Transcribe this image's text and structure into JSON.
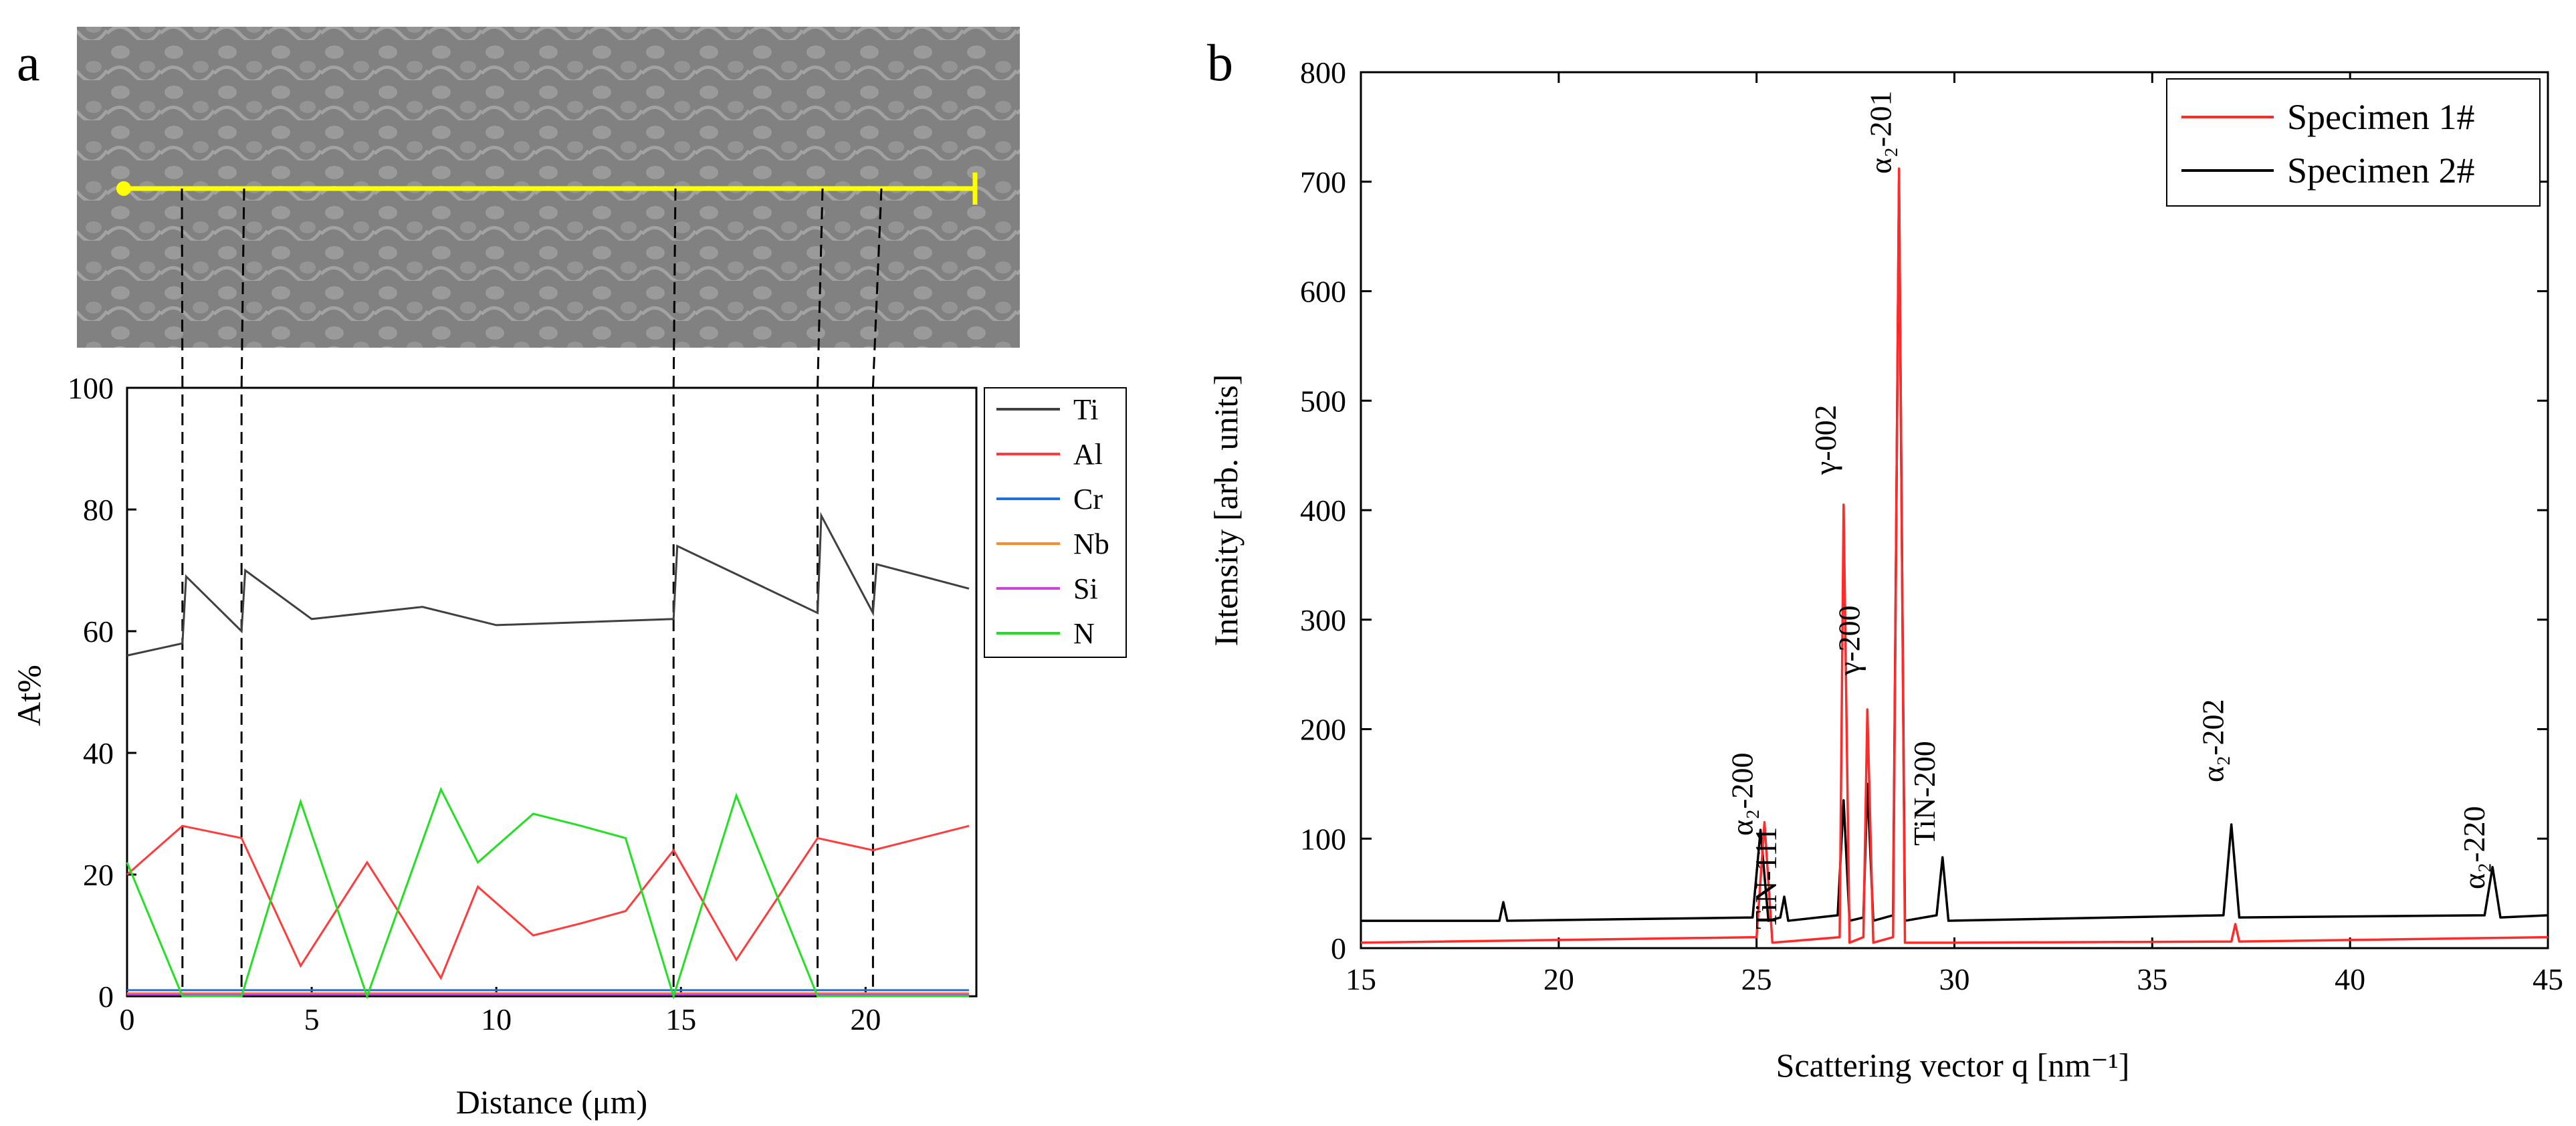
{
  "panel_a": {
    "label": "a",
    "ylabel": "At%",
    "xlabel": "Distance (μm)",
    "xticks": [
      "0",
      "5",
      "10",
      "15",
      "20"
    ],
    "yticks": [
      "0",
      "20",
      "40",
      "60",
      "80",
      "100"
    ],
    "legend": [
      {
        "name": "Ti",
        "color": "#404040"
      },
      {
        "name": "Al",
        "color": "#ff3b3b"
      },
      {
        "name": "Cr",
        "color": "#1f6fd6"
      },
      {
        "name": "Nb",
        "color": "#ff8c2a"
      },
      {
        "name": "Si",
        "color": "#cc44dd"
      },
      {
        "name": "N",
        "color": "#22e022"
      }
    ],
    "image_description_markers": [
      1.5,
      3.1,
      14.8,
      18.7,
      20.2
    ]
  },
  "panel_b": {
    "label": "b",
    "ylabel": "Intensity [arb. units]",
    "xlabel": "Scattering vector q [nm⁻¹]",
    "xticks": [
      "15",
      "20",
      "25",
      "30",
      "35",
      "40",
      "45"
    ],
    "yticks": [
      "0",
      "100",
      "200",
      "300",
      "400",
      "500",
      "600",
      "700",
      "800"
    ],
    "legend": [
      {
        "name": "Specimen 1#",
        "color": "#ff2a2a"
      },
      {
        "name": "Specimen 2#",
        "color": "#000000"
      }
    ],
    "peaks": [
      {
        "text": "α₂-200",
        "q": 25.1
      },
      {
        "text": "TiN-111",
        "q": 25.7
      },
      {
        "text": "γ-002",
        "q": 27.2
      },
      {
        "text": "γ-200",
        "q": 27.8
      },
      {
        "text": "α₂-201",
        "q": 28.6
      },
      {
        "text": "TiN-200",
        "q": 29.7
      },
      {
        "text": "α₂-202",
        "q": 37.0
      },
      {
        "text": "α₂-220",
        "q": 43.6
      }
    ]
  },
  "chart_data": [
    {
      "type": "line",
      "title": "",
      "xlabel": "Distance (μm)",
      "ylabel": "At%",
      "xlim": [
        0,
        23
      ],
      "ylim": [
        0,
        100
      ],
      "series": [
        {
          "name": "Ti",
          "x": [
            0,
            1.5,
            1.6,
            3.1,
            3.2,
            5,
            8,
            10,
            14.8,
            14.9,
            18.7,
            18.8,
            20.2,
            20.3,
            22.8
          ],
          "values": [
            56,
            58,
            69,
            60,
            70,
            62,
            64,
            61,
            62,
            74,
            63,
            79,
            63,
            71,
            67
          ]
        },
        {
          "name": "Al",
          "x": [
            0,
            1.5,
            3.1,
            4.7,
            6.5,
            8.5,
            9.5,
            11,
            12.3,
            13.5,
            14.8,
            16.5,
            18.7,
            20.2,
            22.8
          ],
          "values": [
            20,
            28,
            26,
            5,
            22,
            3,
            18,
            10,
            12,
            14,
            24,
            6,
            26,
            24,
            28
          ]
        },
        {
          "name": "Cr",
          "x": [
            0,
            22.8
          ],
          "values": [
            1,
            1
          ]
        },
        {
          "name": "Nb",
          "x": [
            0,
            22.8
          ],
          "values": [
            0.5,
            0.5
          ]
        },
        {
          "name": "Si",
          "x": [
            0,
            22.8
          ],
          "values": [
            0.3,
            0.3
          ]
        },
        {
          "name": "N",
          "x": [
            0,
            1.5,
            3.1,
            4.7,
            6.5,
            8.5,
            9.5,
            11,
            12.3,
            13.5,
            14.8,
            16.5,
            18.7,
            20.2,
            22.8
          ],
          "values": [
            22,
            0,
            0,
            32,
            0,
            34,
            22,
            30,
            28,
            26,
            0,
            33,
            0,
            0,
            0
          ]
        }
      ]
    },
    {
      "type": "line",
      "title": "",
      "xlabel": "Scattering vector q [nm⁻¹]",
      "ylabel": "Intensity [arb. units]",
      "xlim": [
        15,
        45
      ],
      "ylim": [
        0,
        800
      ],
      "series": [
        {
          "name": "Specimen 1#",
          "x": [
            15,
            25.0,
            25.2,
            25.4,
            27.1,
            27.2,
            27.35,
            27.7,
            27.8,
            27.95,
            28.45,
            28.6,
            28.75,
            30,
            37.0,
            37.1,
            37.2,
            45
          ],
          "values": [
            5,
            10,
            115,
            5,
            10,
            405,
            5,
            10,
            218,
            5,
            10,
            712,
            5,
            5,
            6,
            22,
            6,
            10
          ]
        },
        {
          "name": "Specimen 2#",
          "x": [
            15,
            18.5,
            18.6,
            18.7,
            24.9,
            25.1,
            25.3,
            25.6,
            25.7,
            25.8,
            27.05,
            27.2,
            27.35,
            27.7,
            27.8,
            27.95,
            28.45,
            28.6,
            28.75,
            29.55,
            29.7,
            29.85,
            36.8,
            37.0,
            37.2,
            43.4,
            43.6,
            43.8,
            45
          ],
          "values": [
            25,
            25,
            42,
            25,
            28,
            108,
            25,
            28,
            47,
            25,
            30,
            135,
            25,
            28,
            150,
            25,
            30,
            700,
            25,
            30,
            83,
            25,
            30,
            113,
            28,
            30,
            74,
            28,
            30
          ]
        }
      ]
    }
  ]
}
